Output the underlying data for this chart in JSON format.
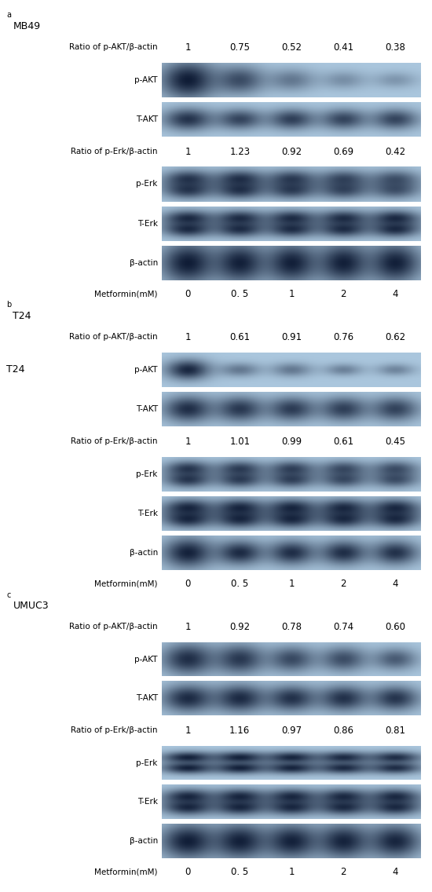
{
  "panels": [
    {
      "label_superscript": "A",
      "cell_line": "MB49",
      "cell_line_side": false,
      "akt_ratio_label": "Ratio of p-AKT/β-actin",
      "akt_ratios": [
        "1",
        "0.75",
        "0.52",
        "0.41",
        "0.38"
      ],
      "erk_ratio_label": "Ratio of p-Erk/β-actin",
      "erk_ratios": [
        "1",
        "1.23",
        "0.92",
        "0.69",
        "0.42"
      ],
      "metformin_label": "Metformin(mM)",
      "metformin_values": [
        "0",
        "0. 5",
        "1",
        "2",
        "4"
      ]
    },
    {
      "label_superscript": "B",
      "cell_line": "T24",
      "cell_line_side": true,
      "akt_ratio_label": "Ratio of p-AKT/β-actin",
      "akt_ratios": [
        "1",
        "0.61",
        "0.91",
        "0.76",
        "0.62"
      ],
      "erk_ratio_label": "Ratio of p-Erk/β-actin",
      "erk_ratios": [
        "1",
        "1.01",
        "0.99",
        "0.61",
        "0.45"
      ],
      "metformin_label": "Metformin(mM)",
      "metformin_values": [
        "0",
        "0. 5",
        "1",
        "2",
        "4"
      ]
    },
    {
      "label_superscript": "C",
      "cell_line": "UMUC3",
      "cell_line_side": false,
      "akt_ratio_label": "Ratio of p-AKT/β-actin",
      "akt_ratios": [
        "1",
        "0.92",
        "0.78",
        "0.74",
        "0.60"
      ],
      "erk_ratio_label": "Ratio of p-Erk/β-actin",
      "erk_ratios": [
        "1",
        "1.16",
        "0.97",
        "0.86",
        "0.81"
      ],
      "metformin_label": "Metformin(mM)",
      "metformin_values": [
        "0",
        "0. 5",
        "1",
        "2",
        "4"
      ]
    }
  ],
  "bg_color": "#ffffff",
  "figsize": [
    5.5,
    11.36
  ],
  "dpi": 100
}
